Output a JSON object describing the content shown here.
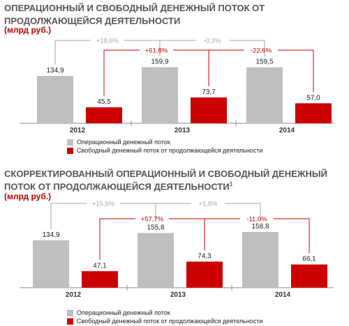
{
  "colors": {
    "gray": "#bfbfbf",
    "red": "#cc0000",
    "gray_bracket": "#a6a6a6",
    "red_bracket": "#cc0000"
  },
  "chart_data": [
    {
      "type": "bar",
      "title": "ОПЕРАЦИОННЫЙ И СВОБОДНЫЙ ДЕНЕЖНЫЙ ПОТОК ОТ ПРОДОЛЖАЮЩЕЙСЯ ДЕЯТЕЛЬНОСТИ",
      "title_mark": "",
      "unit": "(млрд руб.)",
      "categories": [
        "2012",
        "2013",
        "2014"
      ],
      "series": [
        {
          "name": "Операционный денежный поток",
          "color": "#bfbfbf",
          "values": [
            134.9,
            159.9,
            159.5
          ],
          "labels": [
            "134,9",
            "159,9",
            "159,5"
          ]
        },
        {
          "name": "Свободный денежный поток от продолжающейся деятельности",
          "color": "#cc0000",
          "values": [
            45.5,
            73.7,
            57.0
          ],
          "labels": [
            "45,5",
            "73,7",
            "57,0"
          ]
        }
      ],
      "changes": [
        {
          "series": 0,
          "from": 0,
          "to": 1,
          "label": "+18,6%"
        },
        {
          "series": 0,
          "from": 1,
          "to": 2,
          "label": "-0,3%"
        },
        {
          "series": 1,
          "from": 0,
          "to": 1,
          "label": "+61,8%"
        },
        {
          "series": 1,
          "from": 1,
          "to": 2,
          "label": "-22,6%"
        }
      ],
      "ylim": [
        0,
        180
      ]
    },
    {
      "type": "bar",
      "title": "СКОРРЕКТИРОВАННЫЙ ОПЕРАЦИОННЫЙ И СВОБОДНЫЙ ДЕНЕЖНЫЙ ПОТОК ОТ ПРОДОЛЖАЮЩЕЙСЯ ДЕЯТЕЛЬНОСТИ",
      "title_mark": "1",
      "unit": "(млрд руб.)",
      "categories": [
        "2012",
        "2013",
        "2014"
      ],
      "series": [
        {
          "name": "Операционный денежный поток",
          "color": "#bfbfbf",
          "values": [
            134.9,
            155.8,
            158.8
          ],
          "labels": [
            "134,9",
            "155,8",
            "158,8"
          ]
        },
        {
          "name": "Свободный денежный поток от продолжающейся деятельности",
          "color": "#cc0000",
          "values": [
            47.1,
            74.3,
            66.1
          ],
          "labels": [
            "47,1",
            "74,3",
            "66,1"
          ]
        }
      ],
      "changes": [
        {
          "series": 0,
          "from": 0,
          "to": 1,
          "label": "+15,6%"
        },
        {
          "series": 0,
          "from": 1,
          "to": 2,
          "label": "+1,8%"
        },
        {
          "series": 1,
          "from": 0,
          "to": 1,
          "label": "+57,7%"
        },
        {
          "series": 1,
          "from": 1,
          "to": 2,
          "label": "-11,0%"
        }
      ],
      "ylim": [
        0,
        180
      ]
    }
  ]
}
